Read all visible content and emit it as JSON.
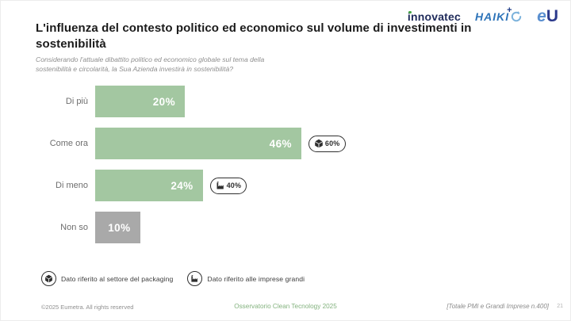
{
  "slide": {
    "title": "L'influenza del contesto politico ed economico sul volume di investimenti in sostenibilità",
    "subtitle": "Considerando l'attuale dibattito politico ed economico globale sul tema della sostenibilità e circolarità, la Sua Azienda investirà in sostenibilità?"
  },
  "logos": {
    "innovatec": "innovatec",
    "haiki": "HAIKI",
    "haiki_plus": "+",
    "eu_e": "e",
    "eu_u": "U"
  },
  "chart_data": {
    "type": "bar",
    "orientation": "horizontal",
    "title": "L'influenza del contesto politico ed economico sul volume di investimenti in sostenibilità",
    "categories": [
      "Di più",
      "Come ora",
      "Di meno",
      "Non so"
    ],
    "values": [
      20,
      46,
      24,
      10
    ],
    "value_labels": [
      "20%",
      "46%",
      "24%",
      "10%"
    ],
    "bar_colors": [
      "#a3c7a1",
      "#a3c7a1",
      "#a3c7a1",
      "#a9a9a9"
    ],
    "xlim": [
      0,
      100
    ],
    "grid": false,
    "legend_position": "bottom",
    "annotations": [
      {
        "category": "Come ora",
        "icon": "package-icon",
        "value": "60%"
      },
      {
        "category": "Di meno",
        "icon": "factory-icon",
        "value": "40%"
      }
    ]
  },
  "legend": {
    "items": [
      {
        "icon": "package-icon",
        "label": "Dato riferito al settore del packaging"
      },
      {
        "icon": "factory-icon",
        "label": "Dato riferito alle imprese grandi"
      }
    ]
  },
  "footer": {
    "copyright": "©2025 Eumetra. All rights reserved",
    "center": "Osservatorio Clean Tecnology 2025",
    "sample_note": "[Totale PMI e Grandi Imprese n.400]",
    "page_number": "21"
  },
  "colors": {
    "bar_green": "#a3c7a1",
    "bar_gray": "#a9a9a9",
    "footer_green": "#83b27e",
    "innovatec_navy": "#1e2a5a",
    "innovatec_dot_green": "#46a546",
    "haiki_blue": "#2e74b9",
    "haiki_light_blue": "#7db3dc",
    "eu_blue_light": "#5a8fd0",
    "eu_blue_dark": "#2c3a8c"
  }
}
